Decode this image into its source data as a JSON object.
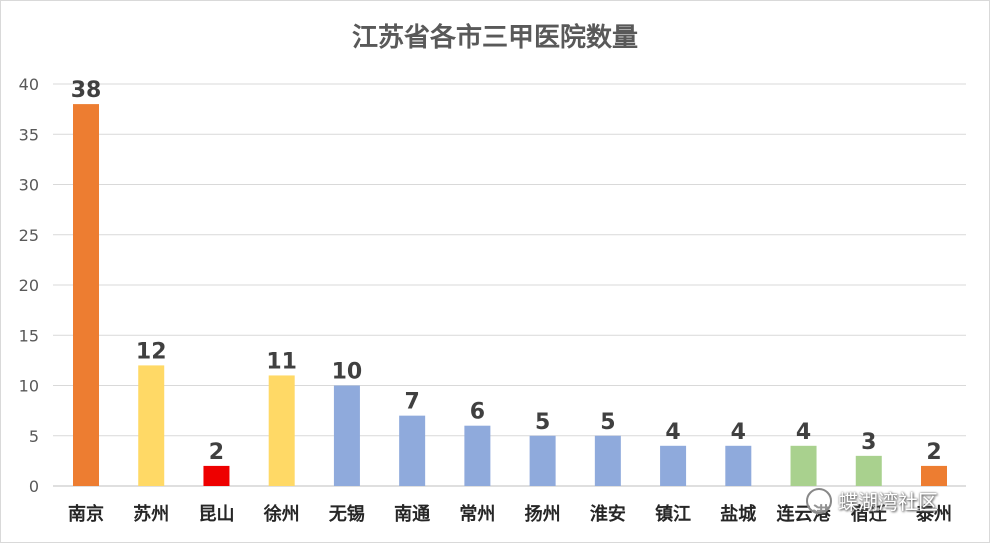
{
  "chart_data": {
    "type": "bar",
    "title": "江苏省各市三甲医院数量",
    "categories": [
      "南京",
      "苏州",
      "昆山",
      "徐州",
      "无锡",
      "南通",
      "常州",
      "扬州",
      "淮安",
      "镇江",
      "盐城",
      "连云港",
      "宿迁",
      "泰州"
    ],
    "values": [
      38,
      12,
      2,
      11,
      10,
      7,
      6,
      5,
      5,
      4,
      4,
      4,
      3,
      2
    ],
    "colors": [
      "#ED7D31",
      "#FFD966",
      "#EE0000",
      "#FFD966",
      "#8FAADC",
      "#8FAADC",
      "#8FAADC",
      "#8FAADC",
      "#8FAADC",
      "#8FAADC",
      "#8FAADC",
      "#A9D18E",
      "#A9D18E",
      "#ED7D31"
    ],
    "yticks": [
      0,
      5,
      10,
      15,
      20,
      25,
      30,
      35,
      40
    ],
    "ylim": [
      0,
      40
    ],
    "grid": true,
    "data_labels": true
  },
  "watermark": {
    "text": "蝶湖湾社区",
    "icon": "wechat-icon"
  }
}
